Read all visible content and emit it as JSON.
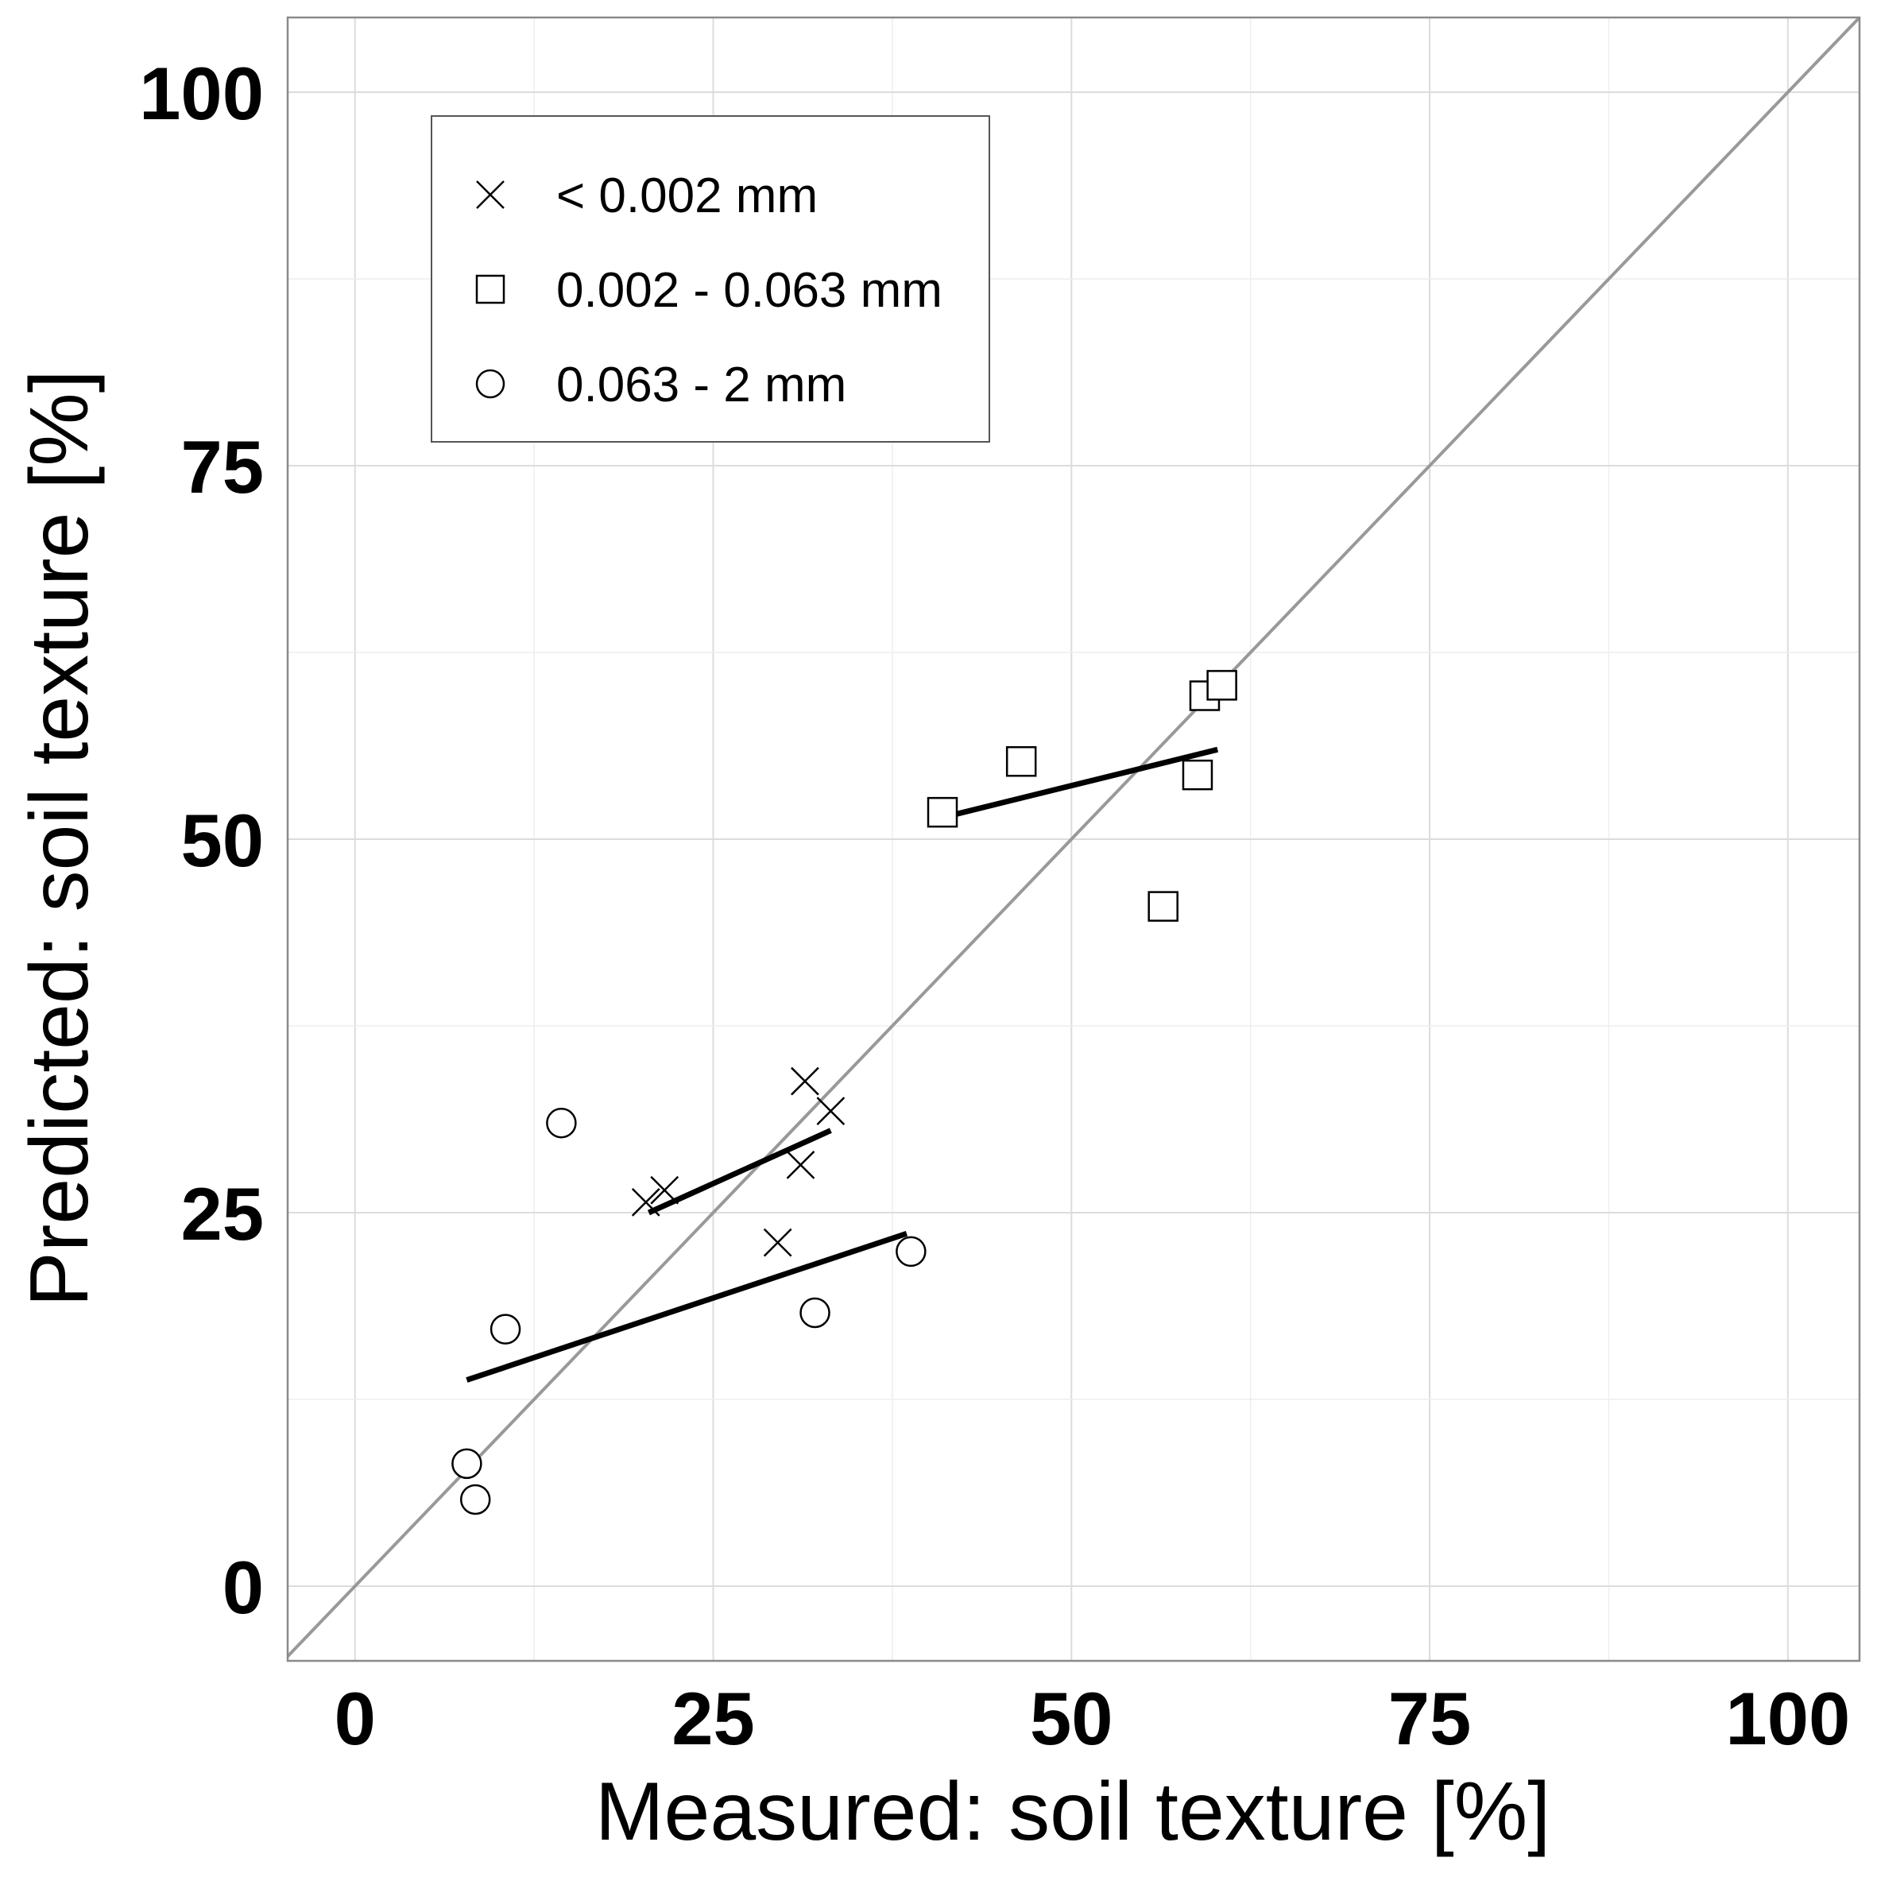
{
  "chart_data": {
    "type": "scatter",
    "xlabel": "Measured: soil texture [%]",
    "ylabel": "Predicted: soil texture [%]",
    "xlim": [
      -4.7,
      105
    ],
    "ylim": [
      -5,
      105
    ],
    "xticks": [
      0,
      25,
      50,
      75,
      100
    ],
    "yticks": [
      0,
      25,
      50,
      75,
      100
    ],
    "grid": true,
    "legend_position": "top-left",
    "reference_line": {
      "type": "identity",
      "color": "#999999"
    },
    "series": [
      {
        "name": "< 0.002 mm",
        "marker": "x",
        "points": [
          {
            "x": 20.3,
            "y": 25.7
          },
          {
            "x": 21.6,
            "y": 26.5
          },
          {
            "x": 29.5,
            "y": 23.0
          },
          {
            "x": 31.1,
            "y": 28.2
          },
          {
            "x": 31.4,
            "y": 33.8
          },
          {
            "x": 33.2,
            "y": 31.8
          }
        ],
        "trend": {
          "x": [
            20.5,
            33.2
          ],
          "y": [
            25.0,
            30.5
          ]
        }
      },
      {
        "name": "0.002 - 0.063 mm",
        "marker": "square",
        "points": [
          {
            "x": 41.0,
            "y": 51.8
          },
          {
            "x": 46.5,
            "y": 55.2
          },
          {
            "x": 56.4,
            "y": 45.5
          },
          {
            "x": 58.8,
            "y": 54.3
          },
          {
            "x": 59.3,
            "y": 59.6
          },
          {
            "x": 60.5,
            "y": 60.3
          }
        ],
        "trend": {
          "x": [
            41.2,
            60.2
          ],
          "y": [
            51.5,
            56.0
          ]
        }
      },
      {
        "name": "0.063 - 2 mm",
        "marker": "circle",
        "points": [
          {
            "x": 7.8,
            "y": 8.2
          },
          {
            "x": 8.4,
            "y": 5.8
          },
          {
            "x": 10.5,
            "y": 17.2
          },
          {
            "x": 14.4,
            "y": 31.0
          },
          {
            "x": 32.1,
            "y": 18.3
          },
          {
            "x": 38.8,
            "y": 22.4
          }
        ],
        "trend": {
          "x": [
            7.8,
            38.5
          ],
          "y": [
            13.8,
            23.6
          ]
        }
      }
    ]
  }
}
